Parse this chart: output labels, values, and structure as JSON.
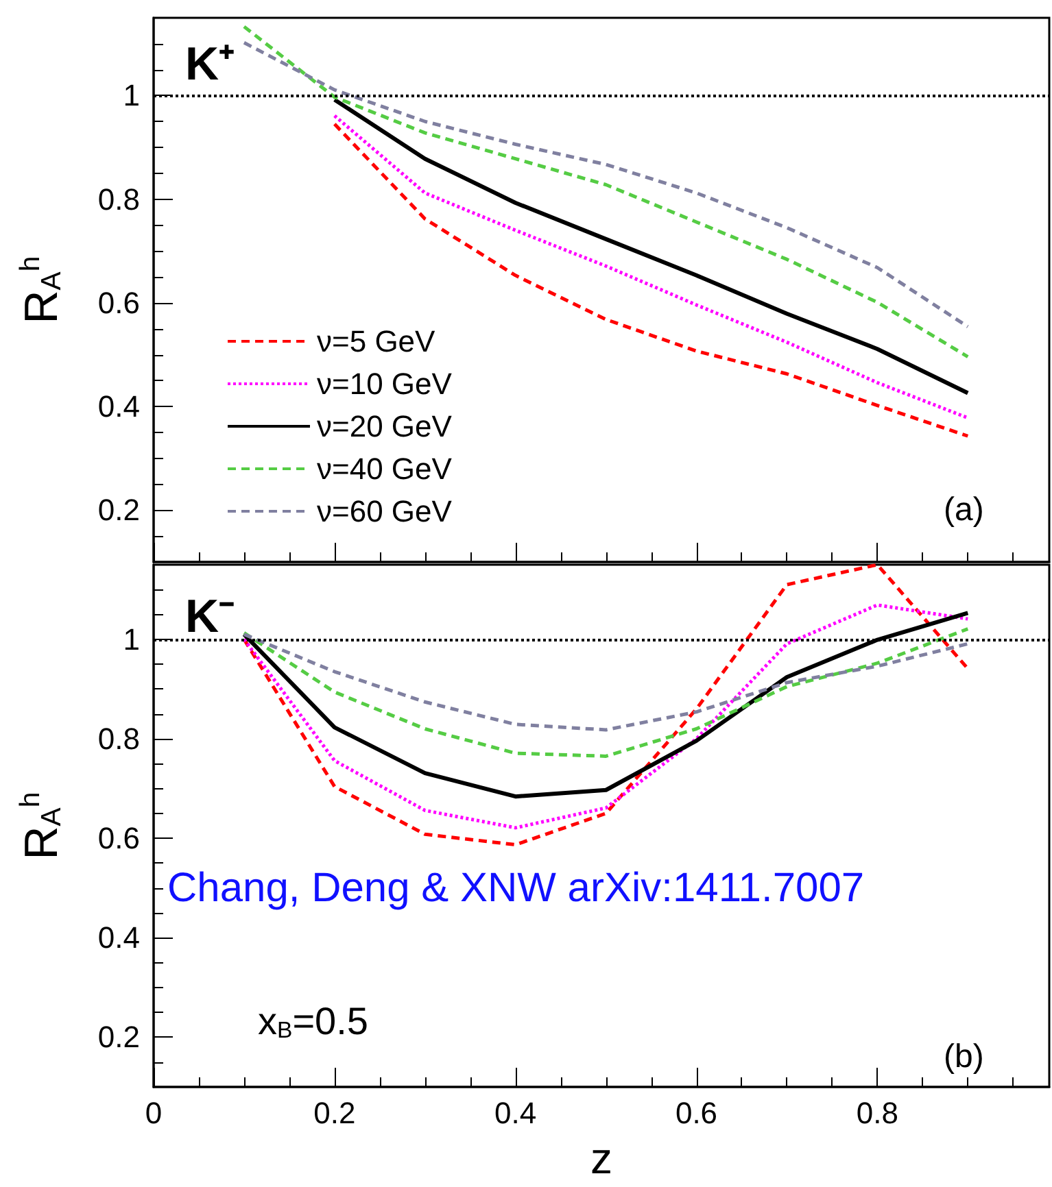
{
  "chart_data": [
    {
      "type": "line",
      "ylabel": "R$_{A}$$^{h}$",
      "x": [
        0.1,
        0.2,
        0.3,
        0.4,
        0.5,
        0.6,
        0.7,
        0.8,
        0.9
      ],
      "xlim": [
        0,
        0.99
      ],
      "xticks": [
        0,
        0.2,
        0.4,
        0.6,
        0.8
      ],
      "ylim": [
        0.1,
        1.15
      ],
      "yticks": [
        0.2,
        0.4,
        0.6,
        0.8,
        1
      ],
      "tick_labels": "y",
      "grid": false,
      "marker": "none",
      "legend": "bottom left",
      "annotations": [
        "K⁺",
        "(a)"
      ],
      "ref_lines": [
        {
          "axis": "y",
          "value": 1,
          "color": "#000000",
          "line_style": "dotted"
        }
      ],
      "series": [
        {
          "name": "ν=5 GeV",
          "color": "#ff0000",
          "line_style": "dashed",
          "values": [
            null,
            0.945,
            0.762,
            0.653,
            0.568,
            0.507,
            0.463,
            0.402,
            0.343
          ]
        },
        {
          "name": "ν=10 GeV",
          "color": "#ff00ff",
          "line_style": "dotted",
          "values": [
            null,
            0.961,
            0.812,
            0.74,
            0.671,
            0.596,
            0.524,
            0.446,
            0.378
          ]
        },
        {
          "name": "ν=20 GeV",
          "color": "#000000",
          "line_style": "solid",
          "values": [
            null,
            0.992,
            0.878,
            0.793,
            0.723,
            0.653,
            0.579,
            0.511,
            0.426
          ]
        },
        {
          "name": "ν=40 GeV",
          "color": "#55cc44",
          "line_style": "dashed",
          "values": [
            1.133,
            0.997,
            0.928,
            0.878,
            0.828,
            0.756,
            0.684,
            0.601,
            0.496
          ]
        },
        {
          "name": "ν=60 GeV",
          "color": "#8080a0",
          "line_style": "dashed",
          "values": [
            1.102,
            1.011,
            0.95,
            0.906,
            0.867,
            0.812,
            0.745,
            0.668,
            0.554
          ]
        }
      ]
    },
    {
      "type": "line",
      "xlabel": "z",
      "ylabel": "R$_{A}$$^{h}$",
      "x": [
        0.1,
        0.2,
        0.3,
        0.4,
        0.5,
        0.6,
        0.7,
        0.8,
        0.9
      ],
      "xlim": [
        0,
        0.99
      ],
      "xticks": [
        0,
        0.2,
        0.4,
        0.6,
        0.8
      ],
      "ylim": [
        0.1,
        1.15
      ],
      "yticks": [
        0.2,
        0.4,
        0.6,
        0.8,
        1
      ],
      "grid": false,
      "marker": "none",
      "legend": false,
      "annotations": [
        "K⁻",
        "(b)",
        "Chang, Deng & XNW arXiv:1411.7007",
        "x$_{B}$=0.5"
      ],
      "ref_lines": [
        {
          "axis": "y",
          "value": 1,
          "color": "#000000",
          "line_style": "dotted"
        }
      ],
      "series": [
        {
          "color": "#ff0000",
          "line_style": "dashed",
          "values": [
            1.0,
            0.704,
            0.608,
            0.587,
            0.65,
            0.86,
            1.11,
            1.15,
            0.941
          ]
        },
        {
          "color": "#ff00ff",
          "line_style": "dotted",
          "values": [
            1.0,
            0.756,
            0.656,
            0.621,
            0.661,
            0.8,
            0.991,
            1.069,
            1.041
          ]
        },
        {
          "color": "#000000",
          "line_style": "solid",
          "values": [
            1.01,
            0.823,
            0.731,
            0.684,
            0.697,
            0.796,
            0.924,
            0.999,
            1.053
          ]
        },
        {
          "color": "#55cc44",
          "line_style": "dashed",
          "values": [
            1.013,
            0.894,
            0.82,
            0.771,
            0.765,
            0.82,
            0.905,
            0.952,
            1.021
          ]
        },
        {
          "color": "#8080a0",
          "line_style": "dashed",
          "values": [
            1.01,
            0.935,
            0.874,
            0.829,
            0.818,
            0.854,
            0.913,
            0.946,
            0.991
          ]
        }
      ]
    }
  ]
}
